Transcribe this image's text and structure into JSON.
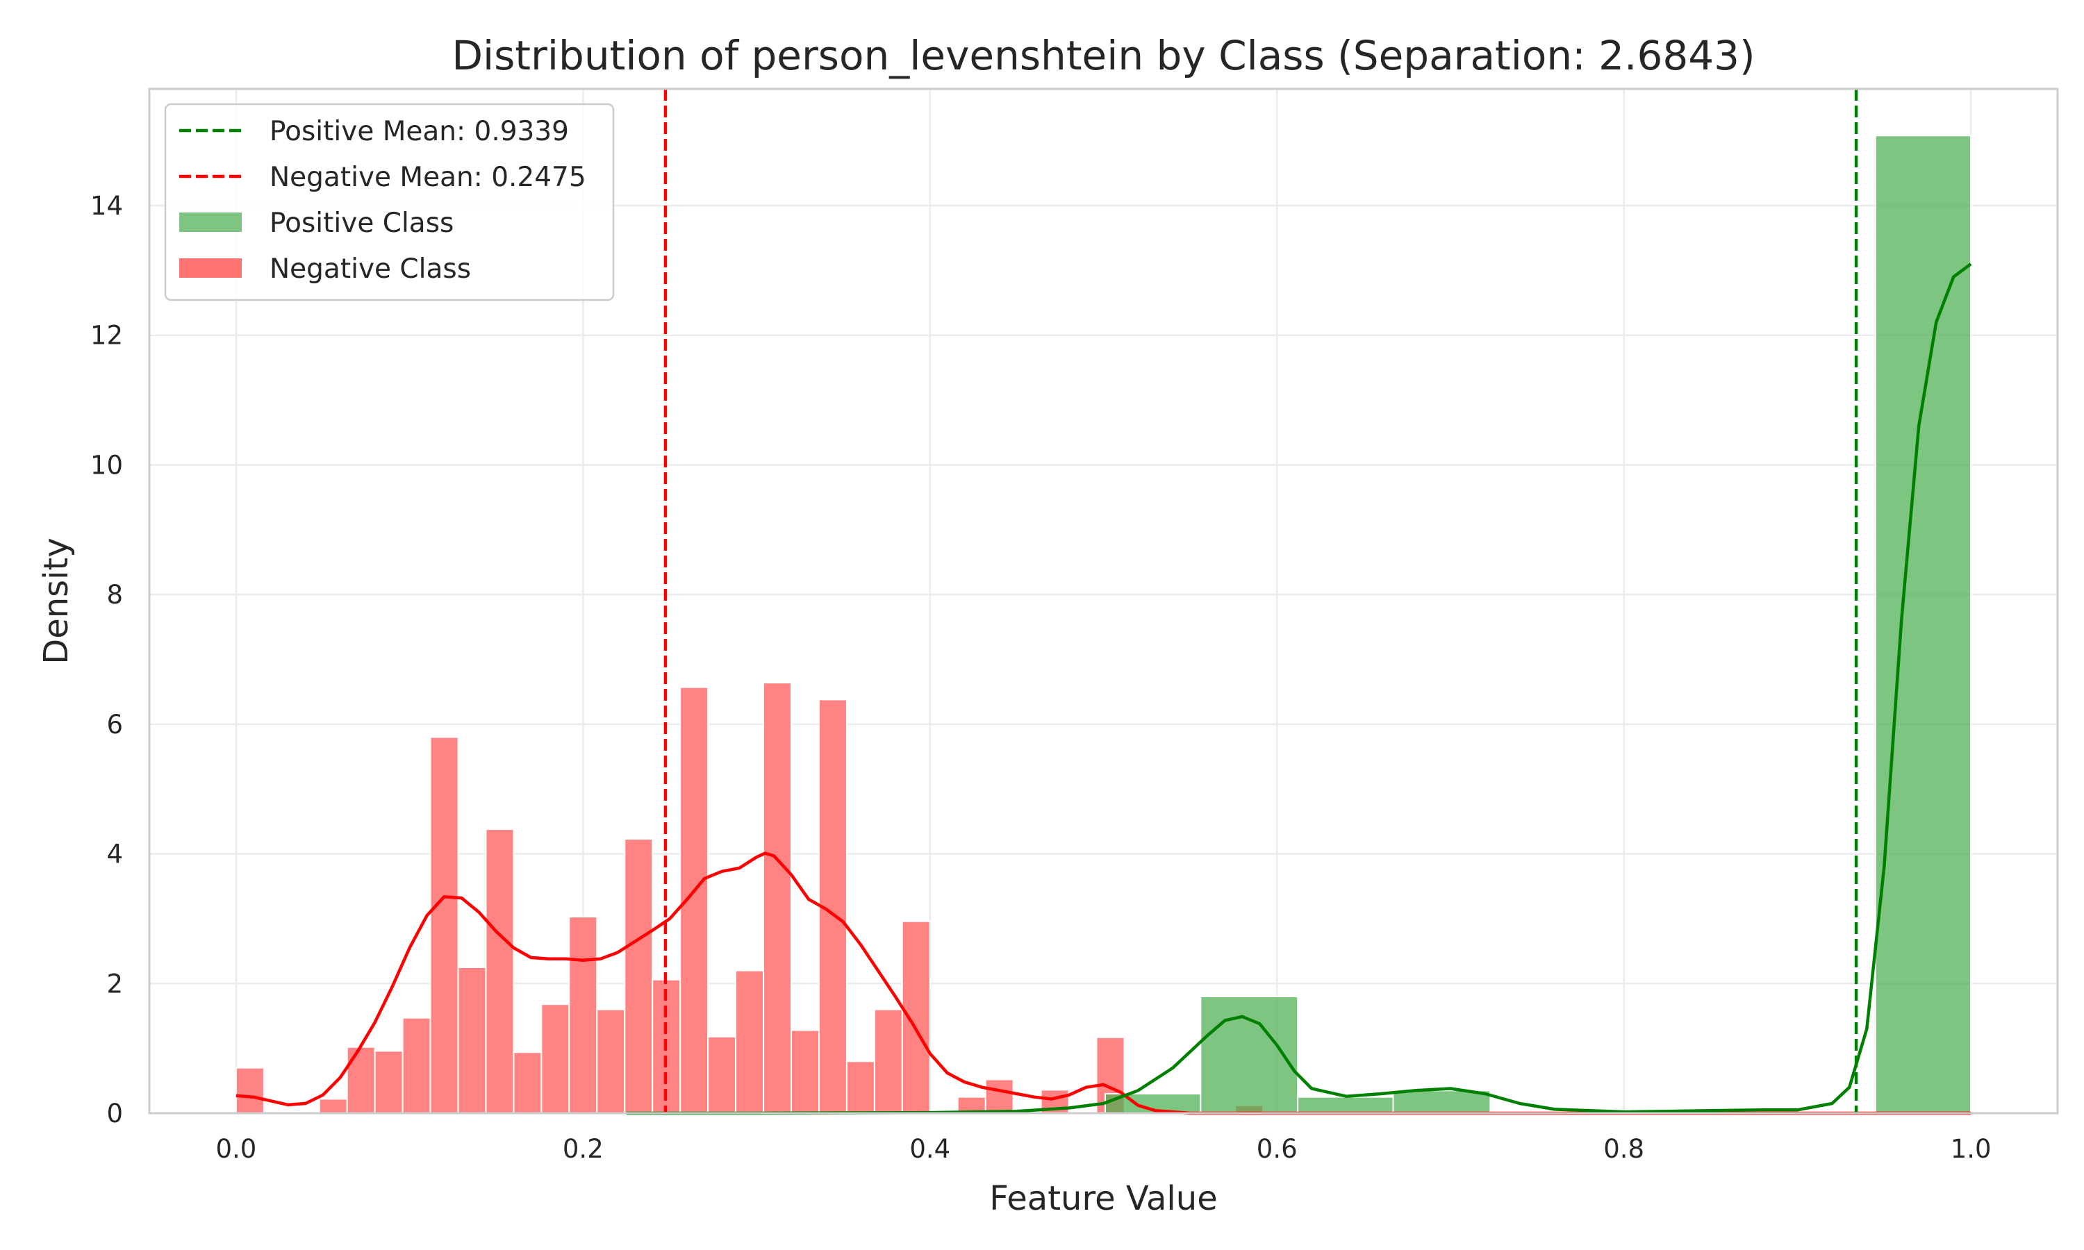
{
  "chart_data": {
    "type": "bar",
    "title": "Distribution of person_levenshtein by Class (Separation: 2.6843)",
    "xlabel": "Feature Value",
    "ylabel": "Density",
    "xlim": [
      -0.05,
      1.05
    ],
    "ylim": [
      0,
      15.8
    ],
    "x_ticks": [
      0.0,
      0.2,
      0.4,
      0.6,
      0.8,
      1.0
    ],
    "x_tick_labels": [
      "0.0",
      "0.2",
      "0.4",
      "0.6",
      "0.8",
      "1.0"
    ],
    "y_ticks": [
      0,
      2,
      4,
      6,
      8,
      10,
      12,
      14
    ],
    "y_tick_labels": [
      "0",
      "2",
      "4",
      "6",
      "8",
      "10",
      "12",
      "14"
    ],
    "grid": true,
    "legend_position": "top-left",
    "legend": [
      {
        "label": "Positive Mean: 0.9339",
        "kind": "dashed-line",
        "color": "#008000"
      },
      {
        "label": "Negative Mean: 0.2475",
        "kind": "dashed-line",
        "color": "#ff0000"
      },
      {
        "label": "Positive Class",
        "kind": "patch",
        "color": "#4caf50"
      },
      {
        "label": "Negative Class",
        "kind": "patch",
        "color": "#ff5a5a"
      }
    ],
    "mean_lines": [
      {
        "name": "Positive Mean",
        "x": 0.9339,
        "color": "#008000"
      },
      {
        "name": "Negative Mean",
        "x": 0.2475,
        "color": "#ff0000"
      }
    ],
    "series": [
      {
        "name": "Negative Class",
        "color": "#ff7f7f",
        "bars": [
          {
            "x0": 0.0,
            "x1": 0.016,
            "value": 0.7
          },
          {
            "x0": 0.048,
            "x1": 0.064,
            "value": 0.22
          },
          {
            "x0": 0.064,
            "x1": 0.08,
            "value": 1.02
          },
          {
            "x0": 0.08,
            "x1": 0.096,
            "value": 0.96
          },
          {
            "x0": 0.096,
            "x1": 0.112,
            "value": 1.47
          },
          {
            "x0": 0.112,
            "x1": 0.128,
            "value": 5.8
          },
          {
            "x0": 0.128,
            "x1": 0.144,
            "value": 2.25
          },
          {
            "x0": 0.144,
            "x1": 0.16,
            "value": 4.38
          },
          {
            "x0": 0.16,
            "x1": 0.176,
            "value": 0.94
          },
          {
            "x0": 0.176,
            "x1": 0.192,
            "value": 1.68
          },
          {
            "x0": 0.192,
            "x1": 0.208,
            "value": 3.03
          },
          {
            "x0": 0.208,
            "x1": 0.224,
            "value": 1.6
          },
          {
            "x0": 0.224,
            "x1": 0.24,
            "value": 4.23
          },
          {
            "x0": 0.24,
            "x1": 0.256,
            "value": 2.06
          },
          {
            "x0": 0.256,
            "x1": 0.272,
            "value": 6.57
          },
          {
            "x0": 0.272,
            "x1": 0.288,
            "value": 1.18
          },
          {
            "x0": 0.288,
            "x1": 0.304,
            "value": 2.2
          },
          {
            "x0": 0.304,
            "x1": 0.32,
            "value": 6.64
          },
          {
            "x0": 0.32,
            "x1": 0.336,
            "value": 1.28
          },
          {
            "x0": 0.336,
            "x1": 0.352,
            "value": 6.38
          },
          {
            "x0": 0.352,
            "x1": 0.368,
            "value": 0.8
          },
          {
            "x0": 0.368,
            "x1": 0.384,
            "value": 1.6
          },
          {
            "x0": 0.384,
            "x1": 0.4,
            "value": 2.96
          },
          {
            "x0": 0.416,
            "x1": 0.432,
            "value": 0.25
          },
          {
            "x0": 0.432,
            "x1": 0.448,
            "value": 0.52
          },
          {
            "x0": 0.464,
            "x1": 0.48,
            "value": 0.36
          },
          {
            "x0": 0.496,
            "x1": 0.512,
            "value": 1.17
          },
          {
            "x0": 0.576,
            "x1": 0.592,
            "value": 0.12
          },
          {
            "x0": 0.944,
            "x1": 1.0,
            "value": 0.04
          }
        ],
        "kde": [
          [
            0.0,
            0.27
          ],
          [
            0.01,
            0.25
          ],
          [
            0.02,
            0.19
          ],
          [
            0.03,
            0.13
          ],
          [
            0.04,
            0.15
          ],
          [
            0.05,
            0.28
          ],
          [
            0.06,
            0.55
          ],
          [
            0.07,
            0.95
          ],
          [
            0.08,
            1.4
          ],
          [
            0.09,
            1.95
          ],
          [
            0.1,
            2.55
          ],
          [
            0.11,
            3.05
          ],
          [
            0.12,
            3.34
          ],
          [
            0.13,
            3.32
          ],
          [
            0.14,
            3.1
          ],
          [
            0.15,
            2.8
          ],
          [
            0.16,
            2.55
          ],
          [
            0.17,
            2.4
          ],
          [
            0.18,
            2.38
          ],
          [
            0.19,
            2.38
          ],
          [
            0.2,
            2.36
          ],
          [
            0.21,
            2.38
          ],
          [
            0.22,
            2.48
          ],
          [
            0.23,
            2.65
          ],
          [
            0.24,
            2.82
          ],
          [
            0.25,
            3.0
          ],
          [
            0.26,
            3.3
          ],
          [
            0.27,
            3.62
          ],
          [
            0.28,
            3.73
          ],
          [
            0.29,
            3.78
          ],
          [
            0.3,
            3.95
          ],
          [
            0.305,
            4.01
          ],
          [
            0.31,
            3.97
          ],
          [
            0.32,
            3.68
          ],
          [
            0.33,
            3.3
          ],
          [
            0.34,
            3.15
          ],
          [
            0.35,
            2.95
          ],
          [
            0.36,
            2.6
          ],
          [
            0.37,
            2.2
          ],
          [
            0.38,
            1.8
          ],
          [
            0.39,
            1.38
          ],
          [
            0.4,
            0.92
          ],
          [
            0.41,
            0.62
          ],
          [
            0.42,
            0.48
          ],
          [
            0.43,
            0.4
          ],
          [
            0.44,
            0.35
          ],
          [
            0.45,
            0.3
          ],
          [
            0.46,
            0.25
          ],
          [
            0.47,
            0.22
          ],
          [
            0.48,
            0.28
          ],
          [
            0.49,
            0.4
          ],
          [
            0.5,
            0.44
          ],
          [
            0.51,
            0.32
          ],
          [
            0.52,
            0.12
          ],
          [
            0.53,
            0.04
          ],
          [
            0.55,
            0.0
          ],
          [
            1.0,
            0.0
          ]
        ]
      },
      {
        "name": "Positive Class",
        "color": "#4caf50",
        "bars": [
          {
            "x0": 0.501,
            "x1": 0.556,
            "value": 0.3
          },
          {
            "x0": 0.556,
            "x1": 0.612,
            "value": 1.8
          },
          {
            "x0": 0.612,
            "x1": 0.667,
            "value": 0.25
          },
          {
            "x0": 0.667,
            "x1": 0.723,
            "value": 0.35
          },
          {
            "x0": 0.945,
            "x1": 1.0,
            "value": 15.08
          }
        ],
        "kde": [
          [
            0.225,
            0.0
          ],
          [
            0.3,
            0.0
          ],
          [
            0.4,
            0.01
          ],
          [
            0.45,
            0.03
          ],
          [
            0.48,
            0.08
          ],
          [
            0.5,
            0.15
          ],
          [
            0.52,
            0.35
          ],
          [
            0.54,
            0.7
          ],
          [
            0.56,
            1.2
          ],
          [
            0.57,
            1.43
          ],
          [
            0.58,
            1.49
          ],
          [
            0.59,
            1.38
          ],
          [
            0.6,
            1.05
          ],
          [
            0.61,
            0.65
          ],
          [
            0.62,
            0.38
          ],
          [
            0.64,
            0.26
          ],
          [
            0.66,
            0.3
          ],
          [
            0.68,
            0.35
          ],
          [
            0.7,
            0.38
          ],
          [
            0.72,
            0.3
          ],
          [
            0.74,
            0.15
          ],
          [
            0.76,
            0.06
          ],
          [
            0.8,
            0.02
          ],
          [
            0.85,
            0.04
          ],
          [
            0.88,
            0.05
          ],
          [
            0.9,
            0.05
          ],
          [
            0.92,
            0.15
          ],
          [
            0.93,
            0.4
          ],
          [
            0.94,
            1.3
          ],
          [
            0.95,
            3.8
          ],
          [
            0.96,
            7.6
          ],
          [
            0.97,
            10.6
          ],
          [
            0.98,
            12.2
          ],
          [
            0.99,
            12.9
          ],
          [
            1.0,
            13.1
          ]
        ]
      }
    ]
  }
}
